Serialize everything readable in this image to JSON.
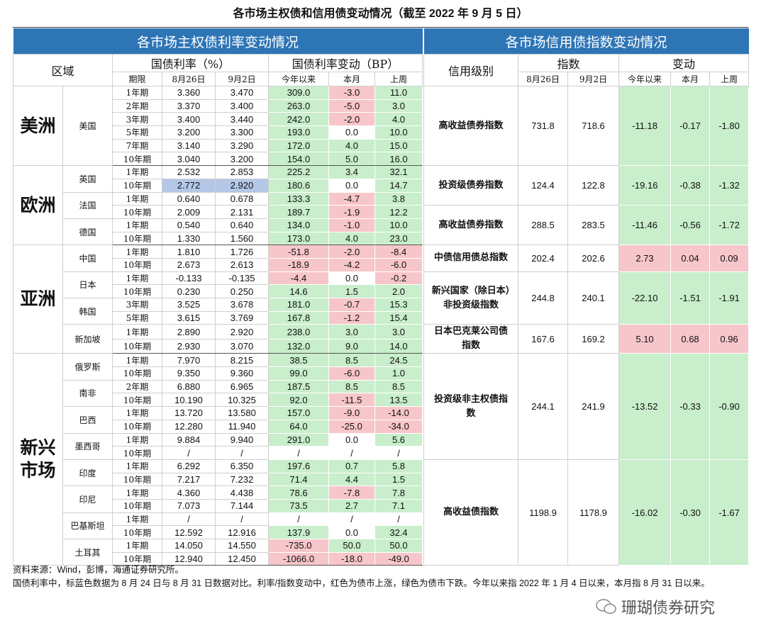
{
  "title": "各市场主权债和信用债变动情况（截至 2022 年 9 月 5 日）",
  "header": {
    "left_title": "各市场主权债利率变动情况",
    "right_title": "各市场信用债指数变动情况",
    "region": "区域",
    "yield": "国债利率（%）",
    "yield_change": "国债利率变动（BP）",
    "tenor": "期限",
    "date1": "8月26日",
    "date2": "9月2日",
    "ytd": "今年以来",
    "month": "本月",
    "week": "上周",
    "rating": "信用级别",
    "index": "指数",
    "change": "变动",
    "r_date1": "8月26日",
    "r_date2": "9月2日",
    "r_ytd": "今年以来",
    "r_month": "本月",
    "r_week": "上周"
  },
  "colors": {
    "header": "#2e75b6",
    "up": "#f7c6ca",
    "down": "#c8eecb"
  },
  "regions": [
    {
      "name": "美洲",
      "countries": [
        {
          "name": "美国",
          "rows": [
            {
              "tenor": "1年期",
              "d1": "3.360",
              "d2": "3.470",
              "ytd": "309.0",
              "month": "-3.0",
              "week": "11.0"
            },
            {
              "tenor": "2年期",
              "d1": "3.370",
              "d2": "3.400",
              "ytd": "263.0",
              "month": "-5.0",
              "week": "3.0"
            },
            {
              "tenor": "3年期",
              "d1": "3.400",
              "d2": "3.440",
              "ytd": "242.0",
              "month": "-2.0",
              "week": "4.0"
            },
            {
              "tenor": "5年期",
              "d1": "3.200",
              "d2": "3.300",
              "ytd": "193.0",
              "month": "0.0",
              "week": "10.0"
            },
            {
              "tenor": "7年期",
              "d1": "3.140",
              "d2": "3.290",
              "ytd": "172.0",
              "month": "4.0",
              "week": "15.0"
            },
            {
              "tenor": "10年期",
              "d1": "3.040",
              "d2": "3.200",
              "ytd": "154.0",
              "month": "5.0",
              "week": "16.0"
            }
          ]
        }
      ]
    },
    {
      "name": "欧洲",
      "countries": [
        {
          "name": "英国",
          "rows": [
            {
              "tenor": "1年期",
              "d1": "2.532",
              "d2": "2.853",
              "ytd": "225.2",
              "month": "3.4",
              "week": "32.1"
            },
            {
              "tenor": "10年期",
              "d1": "2.772",
              "d2": "2.920",
              "ytd": "180.6",
              "month": "0.0",
              "week": "14.7",
              "highlight": "#b4c7e7"
            }
          ]
        },
        {
          "name": "法国",
          "rows": [
            {
              "tenor": "1年期",
              "d1": "0.640",
              "d2": "0.678",
              "ytd": "133.3",
              "month": "-4.7",
              "week": "3.8"
            },
            {
              "tenor": "10年期",
              "d1": "2.009",
              "d2": "2.131",
              "ytd": "189.7",
              "month": "-1.9",
              "week": "12.2"
            }
          ]
        },
        {
          "name": "德国",
          "rows": [
            {
              "tenor": "1年期",
              "d1": "0.540",
              "d2": "0.640",
              "ytd": "134.0",
              "month": "-1.0",
              "week": "10.0"
            },
            {
              "tenor": "10年期",
              "d1": "1.330",
              "d2": "1.560",
              "ytd": "173.0",
              "month": "4.0",
              "week": "23.0"
            }
          ]
        }
      ]
    },
    {
      "name": "亚洲",
      "countries": [
        {
          "name": "中国",
          "rows": [
            {
              "tenor": "1年期",
              "d1": "1.810",
              "d2": "1.726",
              "ytd": "-51.8",
              "month": "-2.0",
              "week": "-8.4"
            },
            {
              "tenor": "10年期",
              "d1": "2.673",
              "d2": "2.613",
              "ytd": "-18.9",
              "month": "-4.2",
              "week": "-6.0"
            }
          ]
        },
        {
          "name": "日本",
          "rows": [
            {
              "tenor": "1年期",
              "d1": "-0.133",
              "d2": "-0.135",
              "ytd": "-4.4",
              "month": "0.0",
              "week": "-0.2"
            },
            {
              "tenor": "10年期",
              "d1": "0.230",
              "d2": "0.250",
              "ytd": "14.6",
              "month": "1.5",
              "week": "2.0"
            }
          ]
        },
        {
          "name": "韩国",
          "rows": [
            {
              "tenor": "3年期",
              "d1": "3.525",
              "d2": "3.678",
              "ytd": "181.0",
              "month": "-0.7",
              "week": "15.3"
            },
            {
              "tenor": "5年期",
              "d1": "3.615",
              "d2": "3.769",
              "ytd": "167.8",
              "month": "-1.2",
              "week": "15.4"
            }
          ]
        },
        {
          "name": "新加坡",
          "rows": [
            {
              "tenor": "1年期",
              "d1": "2.890",
              "d2": "2.920",
              "ytd": "238.0",
              "month": "3.0",
              "week": "3.0"
            },
            {
              "tenor": "10年期",
              "d1": "2.930",
              "d2": "3.070",
              "ytd": "132.0",
              "month": "9.0",
              "week": "14.0"
            }
          ]
        }
      ]
    },
    {
      "name": "新兴市场",
      "countries": [
        {
          "name": "俄罗斯",
          "rows": [
            {
              "tenor": "1年期",
              "d1": "7.970",
              "d2": "8.215",
              "ytd": "38.5",
              "month": "8.5",
              "week": "24.5"
            },
            {
              "tenor": "10年期",
              "d1": "9.350",
              "d2": "9.360",
              "ytd": "99.0",
              "month": "-6.0",
              "week": "1.0"
            }
          ]
        },
        {
          "name": "南非",
          "rows": [
            {
              "tenor": "2年期",
              "d1": "6.880",
              "d2": "6.965",
              "ytd": "187.5",
              "month": "8.5",
              "week": "8.5"
            },
            {
              "tenor": "10年期",
              "d1": "10.190",
              "d2": "10.325",
              "ytd": "92.0",
              "month": "-11.5",
              "week": "13.5"
            }
          ]
        },
        {
          "name": "巴西",
          "rows": [
            {
              "tenor": "1年期",
              "d1": "13.720",
              "d2": "13.580",
              "ytd": "157.0",
              "month": "-9.0",
              "week": "-14.0"
            },
            {
              "tenor": "10年期",
              "d1": "12.280",
              "d2": "11.940",
              "ytd": "64.0",
              "month": "-25.0",
              "week": "-34.0"
            }
          ]
        },
        {
          "name": "墨西哥",
          "rows": [
            {
              "tenor": "1年期",
              "d1": "9.884",
              "d2": "9.940",
              "ytd": "291.0",
              "month": "0.0",
              "week": "5.6"
            },
            {
              "tenor": "10年期",
              "d1": "/",
              "d2": "/",
              "ytd": "/",
              "month": "/",
              "week": "/"
            }
          ]
        },
        {
          "name": "印度",
          "rows": [
            {
              "tenor": "1年期",
              "d1": "6.292",
              "d2": "6.350",
              "ytd": "197.6",
              "month": "0.7",
              "week": "5.8"
            },
            {
              "tenor": "10年期",
              "d1": "7.217",
              "d2": "7.232",
              "ytd": "71.4",
              "month": "4.4",
              "week": "1.5"
            }
          ]
        },
        {
          "name": "印尼",
          "rows": [
            {
              "tenor": "1年期",
              "d1": "4.360",
              "d2": "4.438",
              "ytd": "78.6",
              "month": "-7.8",
              "week": "7.8"
            },
            {
              "tenor": "10年期",
              "d1": "7.073",
              "d2": "7.144",
              "ytd": "73.5",
              "month": "2.7",
              "week": "7.1"
            }
          ]
        },
        {
          "name": "巴基斯坦",
          "rows": [
            {
              "tenor": "1年期",
              "d1": "/",
              "d2": "/",
              "ytd": "/",
              "month": "/",
              "week": "/"
            },
            {
              "tenor": "10年期",
              "d1": "12.592",
              "d2": "12.916",
              "ytd": "137.9",
              "month": "0.0",
              "week": "32.4"
            }
          ]
        },
        {
          "name": "土耳其",
          "rows": [
            {
              "tenor": "1年期",
              "d1": "14.050",
              "d2": "14.550",
              "ytd": "-735.0",
              "month": "50.0",
              "week": "50.0"
            },
            {
              "tenor": "10年期",
              "d1": "12.940",
              "d2": "12.450",
              "ytd": "-1066.0",
              "month": "-18.0",
              "week": "-49.0"
            }
          ]
        }
      ]
    }
  ],
  "credit": [
    {
      "name": "高收益债券指数",
      "d1": "731.8",
      "d2": "718.6",
      "ytd": "-11.18",
      "month": "-0.17",
      "week": "-1.80"
    },
    {
      "name": "投资级债券指数",
      "d1": "124.4",
      "d2": "122.8",
      "ytd": "-19.16",
      "month": "-0.38",
      "week": "-1.32"
    },
    {
      "name": "高收益债券指数",
      "d1": "288.5",
      "d2": "283.5",
      "ytd": "-11.46",
      "month": "-0.56",
      "week": "-1.72"
    },
    {
      "name": "中债信用债总指数",
      "d1": "202.4",
      "d2": "202.6",
      "ytd": "2.73",
      "month": "0.04",
      "week": "0.09"
    },
    {
      "name": "新兴国家（除日本）非投资级指数",
      "d1": "244.8",
      "d2": "240.1",
      "ytd": "-22.10",
      "month": "-1.51",
      "week": "-1.91"
    },
    {
      "name": "日本巴克莱公司债指数",
      "d1": "167.6",
      "d2": "169.2",
      "ytd": "5.10",
      "month": "0.68",
      "week": "0.96"
    },
    {
      "name": "投资级非主权债指数",
      "d1": "244.1",
      "d2": "241.9",
      "ytd": "-13.52",
      "month": "-0.33",
      "week": "-0.90"
    },
    {
      "name": "高收益债指数",
      "d1": "1198.9",
      "d2": "1178.9",
      "ytd": "-16.02",
      "month": "-0.30",
      "week": "-1.67"
    }
  ],
  "footer": {
    "source": "资料来源：Wind，彭博，海通证券研究所。",
    "note": "国债利率中，标蓝色数据为 8 月 24 日与 8 月 31 日数据对比。利率/指数变动中，红色为债市上涨，绿色为债市下跌。今年以来指 2022 年 1 月 4 日以来，本月指 8 月 31 日以来。",
    "watermark": "珊瑚债券研究"
  }
}
